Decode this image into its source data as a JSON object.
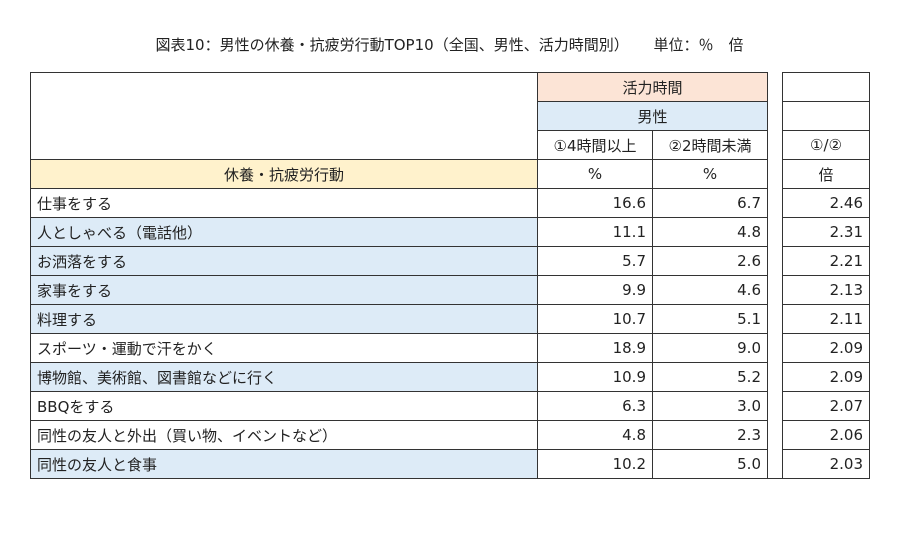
{
  "title": {
    "main": "図表10：男性の休養・抗疲労行動TOP10（全国、男性、活力時間別）",
    "unit": "単位：％　倍"
  },
  "colors": {
    "group_header": "#fce4d6",
    "sex_header": "#ddebf7",
    "label_header": "#fff2cc",
    "highlight_row": "#ddebf7"
  },
  "header": {
    "group": "活力時間",
    "sex": "男性",
    "col1": "①4時間以上",
    "col2": "②2時間未満",
    "col3": "①/②",
    "label_col": "休養・抗疲労行動",
    "unit1": "%",
    "unit2": "%",
    "unit3": "倍"
  },
  "rows": [
    {
      "label": "仕事をする",
      "v1": "16.6",
      "v2": "6.7",
      "ratio": "2.46",
      "highlight": false
    },
    {
      "label": "人としゃべる（電話他）",
      "v1": "11.1",
      "v2": "4.8",
      "ratio": "2.31",
      "highlight": true
    },
    {
      "label": "お洒落をする",
      "v1": "5.7",
      "v2": "2.6",
      "ratio": "2.21",
      "highlight": true
    },
    {
      "label": "家事をする",
      "v1": "9.9",
      "v2": "4.6",
      "ratio": "2.13",
      "highlight": true
    },
    {
      "label": "料理する",
      "v1": "10.7",
      "v2": "5.1",
      "ratio": "2.11",
      "highlight": true
    },
    {
      "label": "スポーツ・運動で汗をかく",
      "v1": "18.9",
      "v2": "9.0",
      "ratio": "2.09",
      "highlight": false
    },
    {
      "label": "博物館、美術館、図書館などに行く",
      "v1": "10.9",
      "v2": "5.2",
      "ratio": "2.09",
      "highlight": true
    },
    {
      "label": "BBQをする",
      "v1": "6.3",
      "v2": "3.0",
      "ratio": "2.07",
      "highlight": false
    },
    {
      "label": "同性の友人と外出（買い物、イベントなど）",
      "v1": "4.8",
      "v2": "2.3",
      "ratio": "2.06",
      "highlight": false
    },
    {
      "label": "同性の友人と食事",
      "v1": "10.2",
      "v2": "5.0",
      "ratio": "2.03",
      "highlight": true
    }
  ]
}
